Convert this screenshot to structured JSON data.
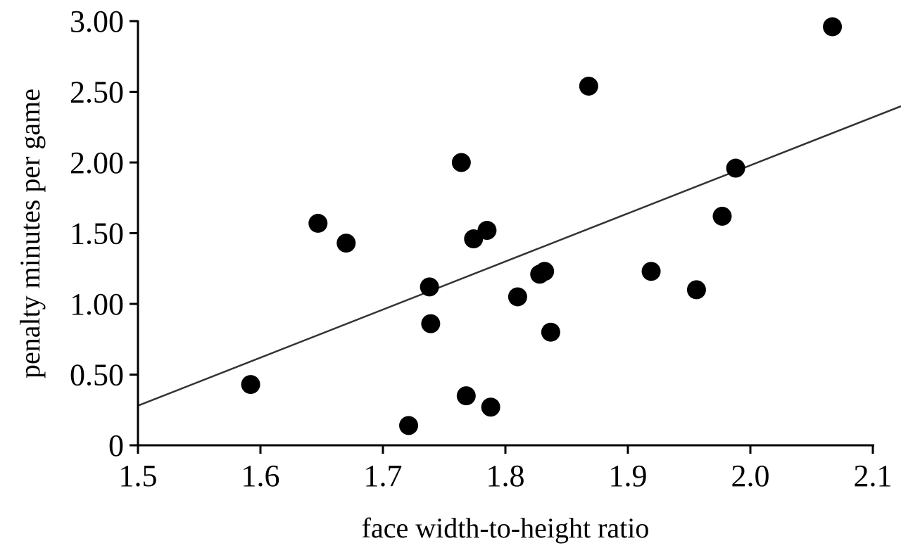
{
  "chart_data": {
    "type": "scatter",
    "title": "",
    "xlabel": "face width-to-height ratio",
    "ylabel": "penalty minutes per game",
    "xlim": [
      1.5,
      2.1
    ],
    "ylim": [
      0,
      3.0
    ],
    "x_ticks": [
      1.5,
      1.6,
      1.7,
      1.8,
      1.9,
      2.0,
      2.1
    ],
    "x_tick_labels": [
      "1.5",
      "1.6",
      "1.7",
      "1.8",
      "1.9",
      "2.0",
      "2.1"
    ],
    "y_ticks": [
      0,
      0.5,
      1.0,
      1.5,
      2.0,
      2.5,
      3.0
    ],
    "y_tick_labels": [
      "0",
      "0.50",
      "1.00",
      "1.50",
      "2.00",
      "2.50",
      "3.00"
    ],
    "grid": false,
    "legend": "none",
    "point_color": "#000000",
    "series": [
      {
        "points": [
          {
            "x": 1.592,
            "y": 0.43
          },
          {
            "x": 1.647,
            "y": 1.57
          },
          {
            "x": 1.67,
            "y": 1.43
          },
          {
            "x": 1.721,
            "y": 0.14
          },
          {
            "x": 1.738,
            "y": 1.12
          },
          {
            "x": 1.739,
            "y": 0.86
          },
          {
            "x": 1.764,
            "y": 2.0
          },
          {
            "x": 1.768,
            "y": 0.35
          },
          {
            "x": 1.774,
            "y": 1.46
          },
          {
            "x": 1.785,
            "y": 1.52
          },
          {
            "x": 1.788,
            "y": 0.27
          },
          {
            "x": 1.81,
            "y": 1.05
          },
          {
            "x": 1.828,
            "y": 1.21
          },
          {
            "x": 1.832,
            "y": 1.23
          },
          {
            "x": 1.837,
            "y": 0.8
          },
          {
            "x": 1.868,
            "y": 2.54
          },
          {
            "x": 1.919,
            "y": 1.23
          },
          {
            "x": 1.956,
            "y": 1.1
          },
          {
            "x": 1.977,
            "y": 1.62
          },
          {
            "x": 1.988,
            "y": 1.96
          },
          {
            "x": 2.067,
            "y": 2.96
          }
        ]
      }
    ],
    "trendline": {
      "type": "linear",
      "x": [
        1.5,
        2.1
      ],
      "y": [
        0.28,
        2.32
      ],
      "color": "#333333"
    }
  }
}
